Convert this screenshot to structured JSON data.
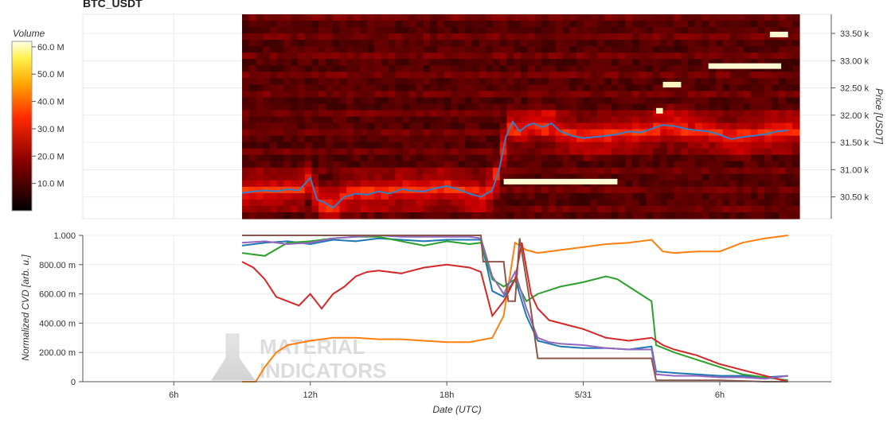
{
  "title": "BTC_USDT",
  "watermark": {
    "line1": "MATERIAL",
    "line2": "INDICATORS"
  },
  "colorbar": {
    "label": "Volume",
    "ticks": [
      "10.0 M",
      "20.0 M",
      "30.0 M",
      "40.0 M",
      "50.0 M",
      "60.0 M"
    ],
    "values": [
      10,
      20,
      30,
      40,
      50,
      60
    ]
  },
  "chart_data": [
    {
      "type": "heatmap",
      "title": "BTC_USDT",
      "ylabel": "Price [USDT]",
      "yticks": [
        "30.50 k",
        "31.00 k",
        "31.50 k",
        "32.00 k",
        "32.50 k",
        "33.00 k",
        "33.50 k"
      ],
      "ytick_values": [
        30500,
        31000,
        31500,
        32000,
        32500,
        33000,
        33500
      ],
      "ylim": [
        30100,
        33850
      ],
      "color_label": "Volume",
      "color_range_M": [
        0,
        62
      ],
      "bright_levels": [
        {
          "from_h": 20.5,
          "to_h": 25.5,
          "price": 30780,
          "volume_M": 62
        },
        {
          "from_h": 29.5,
          "to_h": 32.7,
          "price": 32900,
          "volume_M": 60
        },
        {
          "from_h": 32.2,
          "to_h": 33.0,
          "price": 33480,
          "volume_M": 58
        },
        {
          "from_h": 27.5,
          "to_h": 28.3,
          "price": 32560,
          "volume_M": 55
        },
        {
          "from_h": 27.2,
          "to_h": 27.5,
          "price": 32080,
          "volume_M": 50
        }
      ],
      "series": [
        {
          "name": "price",
          "x_hours": [
            9.0,
            9.5,
            10.0,
            10.5,
            11.0,
            11.5,
            12.0,
            12.3,
            12.6,
            13.0,
            13.5,
            14.0,
            14.5,
            15.0,
            15.5,
            16.0,
            16.5,
            17.0,
            17.5,
            18.0,
            18.5,
            19.0,
            19.5,
            20.0,
            20.3,
            20.6,
            20.9,
            21.2,
            21.5,
            21.8,
            22.2,
            22.6,
            23.0,
            23.5,
            24.0,
            24.5,
            25.0,
            25.5,
            26.0,
            26.5,
            27.0,
            27.5,
            28.0,
            28.5,
            29.0,
            29.5,
            30.0,
            30.5,
            31.0,
            31.5,
            32.0,
            32.5,
            33.0
          ],
          "values": [
            30570,
            30600,
            30620,
            30600,
            30640,
            30620,
            30850,
            30450,
            30400,
            30300,
            30500,
            30560,
            30540,
            30600,
            30560,
            30640,
            30610,
            30600,
            30660,
            30700,
            30640,
            30560,
            30500,
            30620,
            31000,
            31600,
            31880,
            31700,
            31800,
            31850,
            31780,
            31850,
            31700,
            31620,
            31580,
            31600,
            31620,
            31650,
            31700,
            31680,
            31750,
            31820,
            31800,
            31750,
            31720,
            31700,
            31640,
            31560,
            31600,
            31620,
            31650,
            31700,
            31720
          ]
        }
      ]
    },
    {
      "type": "line",
      "ylabel": "Normalized CVD [arb. u.]",
      "xlabel": "Date (UTC)",
      "xticks": [
        "6h",
        "12h",
        "18h",
        "5/31",
        "6h"
      ],
      "xtick_hours": [
        6,
        12,
        18,
        24,
        30
      ],
      "xlim_hours": [
        2,
        34.9
      ],
      "yticks": [
        "0",
        "200.00 m",
        "400.00 m",
        "600.00 m",
        "800.00 m",
        "1.000"
      ],
      "ytick_values": [
        0,
        0.2,
        0.4,
        0.6,
        0.8,
        1.0
      ],
      "ylim": [
        0,
        1.0
      ],
      "series": [
        {
          "color": "#1f77b4",
          "x_hours": [
            9.0,
            10.0,
            11.0,
            12.0,
            13.0,
            14.0,
            15.0,
            16.0,
            17.0,
            18.0,
            19.0,
            19.5,
            20.0,
            20.5,
            21.0,
            21.5,
            22.0,
            22.5,
            23.0,
            24.0,
            25.0,
            26.0,
            27.0,
            27.2,
            28.0,
            29.0,
            30.0,
            31.0,
            32.0,
            33.0
          ],
          "values": [
            0.93,
            0.95,
            0.96,
            0.94,
            0.97,
            0.96,
            0.98,
            0.97,
            0.96,
            0.97,
            0.97,
            0.97,
            0.62,
            0.58,
            0.7,
            0.45,
            0.28,
            0.26,
            0.24,
            0.23,
            0.23,
            0.22,
            0.24,
            0.07,
            0.06,
            0.05,
            0.04,
            0.04,
            0.03,
            0.04
          ]
        },
        {
          "color": "#ff7f0e",
          "x_hours": [
            9.0,
            9.6,
            10.0,
            10.5,
            11.0,
            12.0,
            13.0,
            14.0,
            15.0,
            16.0,
            17.0,
            18.0,
            19.0,
            20.0,
            20.5,
            21.0,
            21.5,
            22.0,
            23.0,
            24.0,
            25.0,
            26.0,
            27.0,
            27.5,
            28.0,
            29.0,
            30.0,
            31.0,
            32.0,
            33.0
          ],
          "values": [
            0.0,
            0.0,
            0.1,
            0.2,
            0.25,
            0.28,
            0.3,
            0.3,
            0.29,
            0.29,
            0.28,
            0.27,
            0.27,
            0.3,
            0.45,
            0.95,
            0.9,
            0.88,
            0.9,
            0.92,
            0.94,
            0.95,
            0.97,
            0.89,
            0.88,
            0.89,
            0.89,
            0.95,
            0.98,
            1.0
          ]
        },
        {
          "color": "#2ca02c",
          "x_hours": [
            9.0,
            10.0,
            11.0,
            12.0,
            13.0,
            14.0,
            15.0,
            16.0,
            17.0,
            18.0,
            19.0,
            19.5,
            20.0,
            20.5,
            21.0,
            21.5,
            22.0,
            23.0,
            24.0,
            25.0,
            25.5,
            26.0,
            26.5,
            27.0,
            27.2,
            28.0,
            29.0,
            30.0,
            31.0,
            32.0,
            33.0
          ],
          "values": [
            0.88,
            0.86,
            0.95,
            0.96,
            0.98,
            0.99,
            0.99,
            0.96,
            0.93,
            0.96,
            0.94,
            0.95,
            0.7,
            0.65,
            0.7,
            0.55,
            0.6,
            0.65,
            0.68,
            0.72,
            0.7,
            0.65,
            0.6,
            0.55,
            0.25,
            0.2,
            0.15,
            0.1,
            0.05,
            0.03,
            0.01
          ]
        },
        {
          "color": "#d62728",
          "x_hours": [
            9.0,
            9.5,
            10.0,
            10.5,
            11.0,
            11.5,
            12.0,
            12.5,
            13.0,
            13.5,
            14.0,
            14.5,
            15.0,
            16.0,
            17.0,
            18.0,
            19.0,
            19.5,
            20.0,
            20.5,
            21.0,
            21.3,
            21.7,
            22.0,
            22.5,
            23.0,
            23.5,
            24.0,
            25.0,
            26.0,
            27.0,
            27.5,
            28.0,
            29.0,
            30.0,
            31.0,
            32.0,
            33.0
          ],
          "values": [
            0.82,
            0.78,
            0.7,
            0.58,
            0.55,
            0.52,
            0.6,
            0.5,
            0.6,
            0.65,
            0.72,
            0.75,
            0.76,
            0.74,
            0.78,
            0.8,
            0.78,
            0.75,
            0.45,
            0.55,
            0.7,
            0.95,
            0.6,
            0.5,
            0.42,
            0.4,
            0.38,
            0.36,
            0.3,
            0.28,
            0.3,
            0.25,
            0.22,
            0.18,
            0.12,
            0.08,
            0.04,
            0.0
          ]
        },
        {
          "color": "#9467bd",
          "x_hours": [
            9.0,
            10.0,
            11.0,
            12.0,
            13.0,
            14.0,
            15.0,
            16.0,
            17.0,
            18.0,
            19.0,
            19.5,
            20.0,
            20.5,
            21.0,
            21.5,
            22.0,
            22.5,
            23.0,
            24.0,
            25.0,
            26.0,
            27.0,
            27.2,
            28.0,
            29.0,
            30.0,
            31.0,
            32.0,
            33.0
          ],
          "values": [
            0.95,
            0.96,
            0.94,
            0.95,
            0.98,
            0.99,
            1.0,
            0.99,
            0.99,
            0.99,
            0.99,
            0.98,
            0.72,
            0.6,
            0.75,
            0.5,
            0.3,
            0.27,
            0.26,
            0.25,
            0.23,
            0.22,
            0.22,
            0.05,
            0.04,
            0.04,
            0.03,
            0.03,
            0.02,
            0.04
          ]
        },
        {
          "color": "#8c564b",
          "x_hours": [
            9.0,
            19.5,
            19.6,
            20.5,
            20.7,
            21.0,
            21.2,
            21.6,
            22.0,
            27.0,
            27.2,
            30.0,
            32.0,
            33.0
          ],
          "values": [
            1.0,
            1.0,
            0.82,
            0.82,
            0.55,
            0.55,
            0.98,
            0.6,
            0.16,
            0.16,
            0.01,
            0.01,
            0.0,
            0.0
          ]
        }
      ]
    }
  ]
}
